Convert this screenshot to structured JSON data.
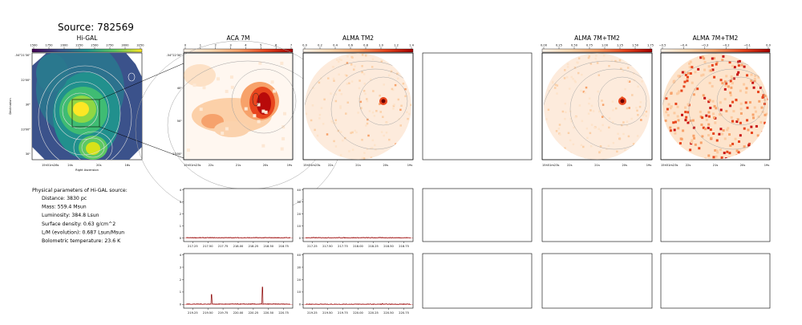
{
  "title": "Source: 782569",
  "colors": {
    "line": "#8b0000",
    "hot_dark": "#a50000",
    "hot_mid": "#e8461e",
    "hot_low": "#fbd8b4",
    "contour": "#9a9a9a"
  },
  "params": {
    "heading": "Physical parameters of Hi-GAL source:",
    "lines": [
      "Distance: 3830 pc",
      "Mass: 559.4 Msun",
      "Luminosity: 384.8 Lsun",
      "Surface density: 0.63 g/cm^2",
      "L/M (evolution): 0.687 Lsun/Msun",
      "Bolometric temperature: 23.6 K"
    ]
  },
  "images": [
    {
      "id": "higal",
      "title": "Hi-GAL",
      "cmap": "viridis",
      "cbar_ticks": [
        "1500",
        "1750",
        "2000",
        "2250",
        "2500",
        "2750",
        "3000",
        "3250"
      ],
      "y_ticks": [
        "-54°21'30\"",
        "22'00\"",
        "30\"",
        "23'00\"",
        "30\""
      ],
      "x_ticks": [
        "15h51m28s",
        "24s",
        "20s",
        "16s"
      ],
      "xlabel": "Right Ascension",
      "ylabel": "Declination"
    },
    {
      "id": "aca7m",
      "title": "ACA 7M",
      "cmap": "hot",
      "cbar_ticks": [
        "0",
        "1",
        "2",
        "3",
        "4",
        "5",
        "6",
        "7"
      ],
      "y_ticks": [
        "-54°22'30\"",
        "40\"",
        "50\"",
        "23'00\""
      ],
      "x_ticks": [
        "15h51m23s",
        "22s",
        "21s",
        "20s",
        "19s"
      ]
    },
    {
      "id": "almatm2",
      "title": "ALMA TM2",
      "cmap": "hot",
      "cbar_ticks": [
        "0.0",
        "0.2",
        "0.4",
        "0.6",
        "0.8",
        "1.0",
        "1.2",
        "1.4"
      ],
      "x_ticks": [
        "15h51m23s",
        "22s",
        "21s",
        "20s",
        "19s"
      ]
    },
    {
      "id": "empty",
      "title": ""
    },
    {
      "id": "alma7mtm2",
      "title": "ALMA 7M+TM2",
      "cmap": "hot",
      "cbar_ticks": [
        "0.00",
        "0.25",
        "0.50",
        "0.75",
        "1.00",
        "1.25",
        "1.50",
        "1.75"
      ],
      "x_ticks": [
        "15h51m23s",
        "22s",
        "21s",
        "20s",
        "19s"
      ]
    },
    {
      "id": "alma7mtm2b",
      "title": "ALMA 7M+TM2",
      "cmap": "hot",
      "cbar_ticks": [
        "−0.5",
        "−0.4",
        "−0.3",
        "−0.2",
        "−0.1",
        "0.0"
      ],
      "x_ticks": [
        "15h51m23s",
        "22s",
        "21s",
        "20s",
        "19s"
      ]
    }
  ],
  "chart_data": [
    {
      "type": "line",
      "title": "",
      "panel": "spectrum-row1-aca",
      "x_ticks": [
        "217.25",
        "217.50",
        "217.75",
        "218.00",
        "218.25",
        "218.50",
        "218.75"
      ],
      "y_ticks": [
        "0",
        "1",
        "2",
        "3",
        "4"
      ],
      "xlim": [
        217.1,
        218.9
      ],
      "ylim": [
        -0.3,
        4.1
      ],
      "series": [
        {
          "baseline": 0.02,
          "peaks": []
        }
      ]
    },
    {
      "type": "line",
      "title": "",
      "panel": "spectrum-row1-alma",
      "x_ticks": [
        "217.25",
        "217.50",
        "217.75",
        "218.00",
        "218.25",
        "218.50",
        "218.75"
      ],
      "y_ticks": [
        "0",
        "10",
        "20",
        "30",
        "40"
      ],
      "xlim": [
        217.1,
        218.9
      ],
      "ylim": [
        -3,
        41
      ],
      "series": [
        {
          "baseline": 0.2,
          "peaks": []
        }
      ]
    },
    {
      "type": "line",
      "title": "",
      "panel": "spectrum-row2-aca",
      "x_ticks": [
        "219.25",
        "219.50",
        "219.75",
        "220.00",
        "220.25",
        "220.50",
        "220.75"
      ],
      "y_ticks": [
        "0",
        "1",
        "2",
        "3",
        "4"
      ],
      "xlim": [
        219.1,
        220.9
      ],
      "ylim": [
        -0.3,
        4.1
      ],
      "series": [
        {
          "baseline": 0.03,
          "peaks": [
            [
              219.56,
              0.8
            ],
            [
              220.4,
              1.4
            ]
          ]
        }
      ]
    },
    {
      "type": "line",
      "title": "",
      "panel": "spectrum-row2-alma",
      "x_ticks": [
        "219.25",
        "219.50",
        "219.75",
        "220.00",
        "220.25",
        "220.50",
        "220.75"
      ],
      "y_ticks": [
        "0",
        "10",
        "20",
        "30",
        "40"
      ],
      "xlim": [
        219.1,
        220.9
      ],
      "ylim": [
        -3,
        41
      ],
      "series": [
        {
          "baseline": 0.2,
          "peaks": [
            [
              220.4,
              0.8
            ]
          ]
        }
      ]
    }
  ]
}
